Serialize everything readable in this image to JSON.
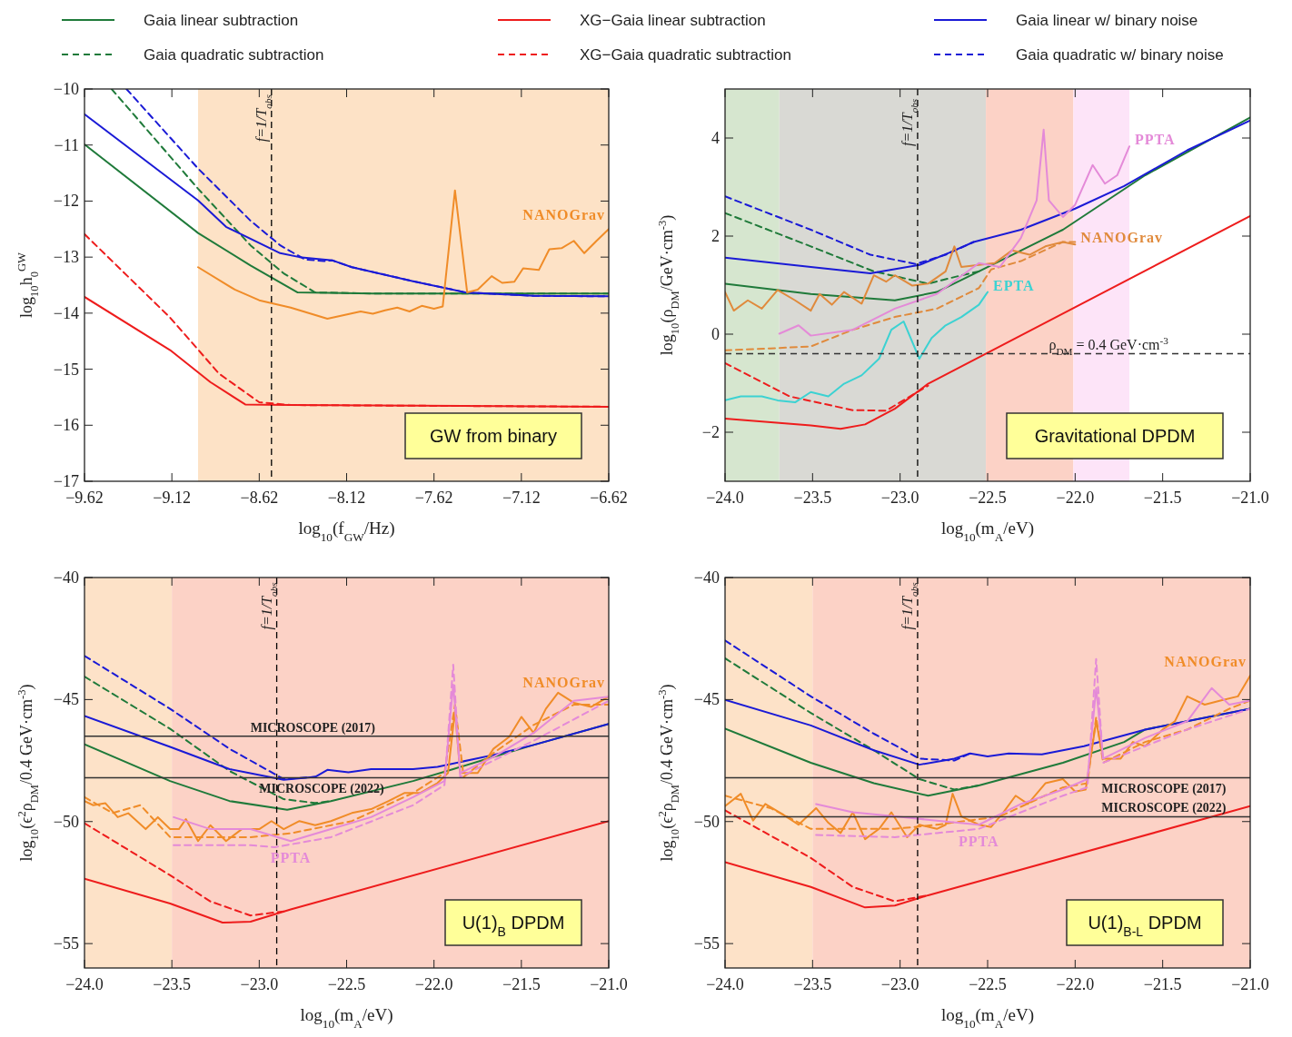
{
  "chart_data": [
    {
      "type": "line",
      "xlabel": "log$_{10}$(f$_{GW}$/Hz)",
      "ylabel": "log$_{10}$h$_{0}$$^{GW}$",
      "xlim": [
        -9.62,
        -6.62
      ],
      "ylim": [
        -17,
        -10
      ],
      "xticks": [
        -9.62,
        -9.12,
        -8.62,
        -8.12,
        -7.62,
        -7.12,
        -6.62
      ],
      "yticks": [
        -17,
        -16,
        -15,
        -14,
        -13,
        -12,
        -11,
        -10
      ],
      "legend": "top",
      "grid": false,
      "bands": [
        {
          "axis": "x",
          "from": -8.97,
          "to": -6.62,
          "color": "#fde2c6"
        }
      ],
      "ref_lines": [
        {
          "axis": "x",
          "value": -8.55,
          "line_style": "dashed",
          "color": "#000000"
        }
      ],
      "annotations": [
        "GW from binary",
        {
          "text": "f=1/T$_{obs}$",
          "x": -8.55,
          "y": -10.1
        }
      ],
      "series": [
        {
          "name": "Gaia linear subtraction",
          "color": "#1f7a3a",
          "line_style": "solid",
          "x": [
            -9.62,
            -8.97,
            -8.67,
            -8.4,
            -7.97,
            -6.62
          ],
          "values": [
            -10.99,
            -12.57,
            -13.15,
            -13.63,
            -13.65,
            -13.65
          ]
        },
        {
          "name": "Gaia quadratic subtraction",
          "color": "#1f7a3a",
          "line_style": "dashed",
          "x": [
            -9.465,
            -8.97,
            -8.67,
            -8.48,
            -8.3,
            -7.97,
            -6.62
          ],
          "values": [
            -10.0,
            -11.78,
            -12.79,
            -13.29,
            -13.63,
            -13.65,
            -13.65
          ]
        },
        {
          "name": "XG−Gaia linear subtraction",
          "color": "#ee1c1c",
          "line_style": "solid",
          "x": [
            -9.62,
            -9.13,
            -8.9,
            -8.7,
            -8.44,
            -6.62
          ],
          "values": [
            -13.71,
            -14.66,
            -15.23,
            -15.63,
            -15.64,
            -15.67
          ]
        },
        {
          "name": "XG−Gaia quadratic subtraction",
          "color": "#ee1c1c",
          "line_style": "dashed",
          "x": [
            -9.62,
            -9.13,
            -8.85,
            -8.62,
            -8.44,
            -6.62
          ],
          "values": [
            -12.59,
            -14.08,
            -15.08,
            -15.59,
            -15.64,
            -15.67
          ]
        },
        {
          "name": "Gaia linear w/ binary noise",
          "color": "#1a1ad6",
          "line_style": "solid",
          "x": [
            -9.62,
            -8.97,
            -8.81,
            -8.5,
            -8.39,
            -8.2,
            -8.09,
            -7.74,
            -7.44,
            -7.05,
            -6.62
          ],
          "values": [
            -10.45,
            -11.99,
            -12.46,
            -12.93,
            -13.0,
            -13.06,
            -13.18,
            -13.43,
            -13.63,
            -13.69,
            -13.7
          ]
        },
        {
          "name": "Gaia quadratic w/ binary noise",
          "color": "#1a1ad6",
          "line_style": "dashed",
          "x": [
            -9.38,
            -8.97,
            -8.67,
            -8.5,
            -8.36,
            -8.25,
            -8.2,
            -8.09,
            -7.74,
            -7.44,
            -7.05,
            -6.62
          ],
          "values": [
            -10.0,
            -11.42,
            -12.35,
            -12.79,
            -13.04,
            -13.07,
            -13.06,
            -13.18,
            -13.43,
            -13.63,
            -13.69,
            -13.7
          ]
        },
        {
          "name": "NANOGrav",
          "color": "#f08c28",
          "x": [
            -8.97,
            -8.76,
            -8.62,
            -8.44,
            -8.23,
            -8.04,
            -7.97,
            -7.9,
            -7.83,
            -7.76,
            -7.69,
            -7.62,
            -7.57,
            -7.5,
            -7.43,
            -7.37,
            -7.29,
            -7.23,
            -7.16,
            -7.11,
            -7.02,
            -6.96,
            -6.89,
            -6.82,
            -6.76,
            -6.69,
            -6.62
          ],
          "values": [
            -13.18,
            -13.58,
            -13.77,
            -13.9,
            -14.1,
            -13.97,
            -14.01,
            -13.95,
            -13.9,
            -13.97,
            -13.87,
            -13.92,
            -13.88,
            -11.81,
            -13.63,
            -13.58,
            -13.34,
            -13.46,
            -13.44,
            -13.2,
            -13.23,
            -12.86,
            -12.84,
            -12.71,
            -12.93,
            -12.71,
            -12.5
          ]
        }
      ]
    },
    {
      "type": "line",
      "xlabel": "log$_{10}$(m$_{A}$/eV)",
      "ylabel": "log$_{10}$(ρ$_{DM}$/GeV·cm$^{-3}$)",
      "xlim": [
        -24,
        -21
      ],
      "ylim": [
        -3,
        5
      ],
      "xticks": [
        {
          "value": -24,
          "label": "−24.0"
        },
        {
          "value": -23.5,
          "label": "−23.5"
        },
        {
          "value": -23,
          "label": "−23.0"
        },
        {
          "value": -22.5,
          "label": "−22.5"
        },
        {
          "value": -22,
          "label": "−22.0"
        },
        {
          "value": -21.5,
          "label": "−21.5"
        },
        {
          "value": -21,
          "label": "−21.0"
        }
      ],
      "yticks": [
        -2,
        0,
        2,
        4
      ],
      "grid": false,
      "bands": [
        {
          "axis": "x",
          "from": -24,
          "to": -23.69,
          "color": "#d6e6cf"
        },
        {
          "axis": "x",
          "from": -23.69,
          "to": -22.51,
          "color": "#d9d9d4"
        },
        {
          "axis": "x",
          "from": -22.51,
          "to": -22.01,
          "color": "#fcd2c6"
        },
        {
          "axis": "x",
          "from": -22.01,
          "to": -21.69,
          "color": "#fde4f8"
        }
      ],
      "ref_lines": [
        {
          "axis": "x",
          "value": -22.9,
          "line_style": "dashed",
          "color": "#000000"
        },
        {
          "axis": "y",
          "value": -0.4,
          "line_style": "dashed",
          "color": "#333333"
        }
      ],
      "annotations": [
        "Gravitational DPDM",
        {
          "text": "f=1/T$_{obs}$",
          "x": -22.9,
          "y": 4.8
        },
        {
          "text": "ρ$_{DM}$ = 0.4 GeV·cm$^{-3}$",
          "x": -22.15,
          "y": -0.4
        }
      ],
      "series": [
        {
          "color": "#1f7a3a",
          "line_style": "solid",
          "x": [
            -24,
            -23.51,
            -23.03,
            -22.79,
            -22.55,
            -22.07,
            -21.6,
            -21
          ],
          "values": [
            1.03,
            0.82,
            0.69,
            0.86,
            1.28,
            2.13,
            3.24,
            4.42
          ]
        },
        {
          "color": "#1f7a3a",
          "line_style": "dashed",
          "x": [
            -24,
            -23.51,
            -23.15,
            -22.84,
            -22.65,
            -22.55
          ],
          "values": [
            2.47,
            1.79,
            1.28,
            1.03,
            1.2,
            1.28
          ]
        },
        {
          "color": "#ee1c1c",
          "line_style": "solid",
          "x": [
            -24,
            -23.51,
            -23.34,
            -23.2,
            -23.03,
            -22.84,
            -21
          ],
          "values": [
            -1.72,
            -1.86,
            -1.93,
            -1.84,
            -1.52,
            -1.01,
            2.41
          ]
        },
        {
          "color": "#ee1c1c",
          "line_style": "dashed",
          "x": [
            -24,
            -23.63,
            -23.27,
            -23.08,
            -22.84
          ],
          "values": [
            -0.59,
            -1.27,
            -1.55,
            -1.56,
            -1.05
          ]
        },
        {
          "color": "#1a1ad6",
          "line_style": "solid",
          "x": [
            -24,
            -23.51,
            -23.17,
            -22.89,
            -22.72,
            -22.58,
            -22.31,
            -22.0,
            -21.72,
            -21.36,
            -21
          ],
          "values": [
            1.56,
            1.37,
            1.24,
            1.41,
            1.66,
            1.88,
            2.13,
            2.56,
            3.02,
            3.75,
            4.36
          ]
        },
        {
          "color": "#1a1ad6",
          "line_style": "dashed",
          "x": [
            -24,
            -23.51,
            -23.17,
            -22.91,
            -22.74,
            -22.58
          ],
          "values": [
            2.81,
            2.13,
            1.62,
            1.43,
            1.62,
            1.88
          ]
        },
        {
          "name": "NANOGrav",
          "color": "#e08a3c",
          "x": [
            -24,
            -23.95,
            -23.87,
            -23.79,
            -23.7,
            -23.6,
            -23.51,
            -23.46,
            -23.39,
            -23.32,
            -23.22,
            -23.15,
            -23.08,
            -23.03,
            -22.93,
            -22.84,
            -22.74,
            -22.69,
            -22.65,
            -22.55,
            -22.46,
            -22.36,
            -22.26,
            -22.17,
            -22.07,
            -22.0
          ],
          "values": [
            0.86,
            0.48,
            0.69,
            0.52,
            0.9,
            0.69,
            0.48,
            0.82,
            0.6,
            0.86,
            0.62,
            1.2,
            1.07,
            1.2,
            0.99,
            1.03,
            1.28,
            1.79,
            1.37,
            1.41,
            1.45,
            1.71,
            1.62,
            1.79,
            1.88,
            1.83
          ]
        },
        {
          "color": "#e08a3c",
          "line_style": "dashed",
          "x": [
            -24,
            -23.74,
            -23.51,
            -23.27,
            -23.03,
            -22.79,
            -22.55,
            -22.48,
            -22.31,
            -22.07,
            -22.0
          ],
          "values": [
            -0.33,
            -0.29,
            -0.25,
            0.09,
            0.35,
            0.52,
            0.94,
            1.32,
            1.49,
            1.88,
            1.88
          ]
        },
        {
          "name": "PPTA",
          "color": "#e48ad8",
          "x": [
            -23.69,
            -23.58,
            -23.51,
            -23.27,
            -23.03,
            -22.79,
            -22.55,
            -22.43,
            -22.31,
            -22.22,
            -22.18,
            -22.15,
            -22.07,
            -22.0,
            -21.9,
            -21.83,
            -21.76,
            -21.69
          ],
          "values": [
            0.01,
            0.18,
            -0.03,
            0.09,
            0.52,
            0.82,
            1.45,
            1.37,
            1.96,
            2.73,
            4.17,
            2.73,
            2.39,
            2.64,
            3.45,
            3.07,
            3.24,
            3.83
          ]
        },
        {
          "name": "EPTA",
          "color": "#3cd2d2",
          "x": [
            -24,
            -23.91,
            -23.79,
            -23.7,
            -23.6,
            -23.51,
            -23.41,
            -23.32,
            -23.22,
            -23.12,
            -23.05,
            -22.98,
            -22.89,
            -22.82,
            -22.74,
            -22.65,
            -22.55,
            -22.5
          ],
          "values": [
            -1.35,
            -1.27,
            -1.27,
            -1.35,
            -1.39,
            -1.18,
            -1.27,
            -1.01,
            -0.84,
            -0.5,
            0.09,
            0.26,
            -0.5,
            -0.08,
            0.18,
            0.35,
            0.6,
            0.86
          ]
        }
      ]
    },
    {
      "type": "line",
      "xlabel": "log$_{10}$(m$_{A}$/eV)",
      "ylabel": "log$_{10}$(ϵ$^{2}$ρ$_{DM}$/0.4 GeV·cm$^{-3}$)",
      "xlim": [
        -24,
        -21
      ],
      "ylim": [
        -56,
        -40
      ],
      "xticks": [
        {
          "value": -24,
          "label": "−24.0"
        },
        {
          "value": -23.5,
          "label": "−23.5"
        },
        {
          "value": -23,
          "label": "−23.0"
        },
        {
          "value": -22.5,
          "label": "−22.5"
        },
        {
          "value": -22,
          "label": "−22.0"
        },
        {
          "value": -21.5,
          "label": "−21.5"
        },
        {
          "value": -21,
          "label": "−21.0"
        }
      ],
      "yticks": [
        -55,
        -50,
        -45,
        -40
      ],
      "grid": false,
      "bands": [
        {
          "axis": "x",
          "from": -24,
          "to": -23.5,
          "color": "#fde2c8"
        },
        {
          "axis": "x",
          "from": -23.5,
          "to": -21,
          "color": "#fcd2c6"
        }
      ],
      "ref_lines": [
        {
          "axis": "x",
          "value": -22.9,
          "line_style": "dashed",
          "color": "#000000"
        },
        {
          "axis": "y",
          "value": -46.5,
          "line_style": "solid",
          "color": "#333333"
        },
        {
          "axis": "y",
          "value": -48.2,
          "line_style": "solid",
          "color": "#333333"
        }
      ],
      "annotations": [
        "U(1)$_{B}$ DPDM",
        {
          "text": "f=1/T$_{obs}$",
          "x": -22.9,
          "y": -40.2
        },
        {
          "text": "MICROSCOPE (2017)",
          "x": -23.05,
          "y": -46.5
        },
        {
          "text": "MICROSCOPE (2022)",
          "x": -23.0,
          "y": -48.2
        }
      ],
      "series": [
        {
          "color": "#1f7a3a",
          "line_style": "solid",
          "x": [
            -24,
            -23.51,
            -23.17,
            -22.84,
            -22.59,
            -22.12,
            -21.89,
            -21.66,
            -21.43,
            -21
          ],
          "values": [
            -46.83,
            -48.34,
            -49.16,
            -49.52,
            -49.16,
            -48.34,
            -47.85,
            -47.35,
            -46.86,
            -46.0
          ]
        },
        {
          "color": "#1f7a3a",
          "line_style": "dashed",
          "x": [
            -24,
            -23.51,
            -23.17,
            -22.86,
            -22.68,
            -22.59
          ],
          "values": [
            -44.06,
            -46.2,
            -47.93,
            -49.08,
            -49.24,
            -49.16
          ]
        },
        {
          "color": "#ee1c1c",
          "line_style": "solid",
          "x": [
            -24,
            -23.51,
            -23.21,
            -23.05,
            -22.82,
            -21
          ],
          "values": [
            -52.34,
            -53.36,
            -54.14,
            -54.1,
            -53.6,
            -49.98
          ]
        },
        {
          "color": "#ee1c1c",
          "line_style": "dashed",
          "x": [
            -24,
            -23.51,
            -23.28,
            -23.05,
            -22.86
          ],
          "values": [
            -50.07,
            -52.2,
            -53.27,
            -53.85,
            -53.68
          ]
        },
        {
          "color": "#1a1ad6",
          "line_style": "solid",
          "x": [
            -24,
            -23.51,
            -23.17,
            -22.86,
            -22.68,
            -22.61,
            -22.49,
            -22.36,
            -22.12,
            -21.98,
            -21.66,
            -21.43,
            -21
          ],
          "values": [
            -45.67,
            -46.94,
            -47.85,
            -48.29,
            -48.17,
            -47.88,
            -47.98,
            -47.85,
            -47.85,
            -47.76,
            -47.27,
            -46.86,
            -46.0
          ]
        },
        {
          "color": "#1a1ad6",
          "line_style": "dashed",
          "x": [
            -24,
            -23.51,
            -23.17,
            -22.86,
            -22.68
          ],
          "values": [
            -43.21,
            -45.38,
            -47.02,
            -48.26,
            -48.17
          ]
        },
        {
          "name": "NANOGrav",
          "color": "#f08c28",
          "x": [
            -24,
            -23.95,
            -23.88,
            -23.81,
            -23.75,
            -23.65,
            -23.58,
            -23.51,
            -23.46,
            -23.42,
            -23.35,
            -23.28,
            -23.19,
            -23.1,
            -23.0,
            -22.93,
            -22.86,
            -22.77,
            -22.68,
            -22.59,
            -22.47,
            -22.36,
            -22.26,
            -22.17,
            -22.08,
            -21.98,
            -21.92,
            -21.88,
            -21.85,
            -21.75,
            -21.66,
            -21.57,
            -21.5,
            -21.43,
            -21.36,
            -21.29,
            -21.2,
            -21.1,
            -21
          ],
          "values": [
            -49.16,
            -49.33,
            -49.25,
            -49.82,
            -49.66,
            -50.31,
            -49.82,
            -50.31,
            -50.31,
            -49.9,
            -50.8,
            -50.15,
            -50.8,
            -50.31,
            -50.31,
            -49.98,
            -50.31,
            -49.98,
            -50.15,
            -49.98,
            -49.65,
            -49.49,
            -49.16,
            -48.83,
            -48.83,
            -48.42,
            -48.01,
            -45.46,
            -48.01,
            -48.01,
            -47.02,
            -46.53,
            -45.71,
            -46.37,
            -45.38,
            -44.72,
            -45.13,
            -45.3,
            -44.88
          ]
        },
        {
          "color": "#f08c28",
          "line_style": "dashed",
          "x": [
            -24,
            -23.84,
            -23.68,
            -23.51,
            -23.28,
            -23.05,
            -22.82,
            -22.47,
            -22.12,
            -21.94,
            -21.88,
            -21.83,
            -21.66,
            -21.43,
            -21.2,
            -21
          ],
          "values": [
            -49.0,
            -49.65,
            -49.33,
            -50.64,
            -50.64,
            -50.64,
            -50.48,
            -49.98,
            -48.83,
            -48.01,
            -45.21,
            -48.17,
            -47.19,
            -46.04,
            -45.21,
            -45.21
          ]
        },
        {
          "name": "PPTA",
          "color": "#e48ad8",
          "x": [
            -23.49,
            -23.28,
            -23.05,
            -22.82,
            -22.59,
            -22.36,
            -22.12,
            -21.94,
            -21.89,
            -21.85,
            -21.66,
            -21.43,
            -21.2,
            -21
          ],
          "values": [
            -49.82,
            -50.31,
            -50.31,
            -50.8,
            -50.31,
            -49.82,
            -49.0,
            -48.34,
            -44.39,
            -48.01,
            -47.35,
            -46.37,
            -45.05,
            -44.88
          ]
        },
        {
          "color": "#e48ad8",
          "line_style": "dashed",
          "x": [
            -23.49,
            -23.05,
            -22.91,
            -22.59,
            -22.12,
            -21.94,
            -21.89,
            -21.85,
            -21.43,
            -21
          ],
          "values": [
            -50.97,
            -50.97,
            -51.05,
            -50.64,
            -49.33,
            -48.5,
            -43.57,
            -48.17,
            -46.69,
            -45.05
          ]
        }
      ]
    },
    {
      "type": "line",
      "xlabel": "log$_{10}$(m$_{A}$/eV)",
      "ylabel": "log$_{10}$(ϵ$^{2}$ρ$_{DM}$/0.4 GeV·cm$^{-3}$)",
      "xlim": [
        -24,
        -21
      ],
      "ylim": [
        -56,
        -40
      ],
      "xticks": [
        {
          "value": -24,
          "label": "−24.0"
        },
        {
          "value": -23.5,
          "label": "−23.5"
        },
        {
          "value": -23,
          "label": "−23.0"
        },
        {
          "value": -22.5,
          "label": "−22.5"
        },
        {
          "value": -22,
          "label": "−22.0"
        },
        {
          "value": -21.5,
          "label": "−21.5"
        },
        {
          "value": -21,
          "label": "−21.0"
        }
      ],
      "yticks": [
        -55,
        -50,
        -45,
        -40
      ],
      "grid": false,
      "bands": [
        {
          "axis": "x",
          "from": -24,
          "to": -23.5,
          "color": "#fde2c8"
        },
        {
          "axis": "x",
          "from": -23.5,
          "to": -21,
          "color": "#fcd2c6"
        }
      ],
      "ref_lines": [
        {
          "axis": "x",
          "value": -22.9,
          "line_style": "dashed",
          "color": "#000000"
        },
        {
          "axis": "y",
          "value": -48.2,
          "line_style": "solid",
          "color": "#333333"
        },
        {
          "axis": "y",
          "value": -49.8,
          "line_style": "solid",
          "color": "#333333"
        }
      ],
      "annotations": [
        "U(1)$_{B-L}$ DPDM",
        {
          "text": "f=1/T$_{obs}$",
          "x": -22.9,
          "y": -40.2
        },
        {
          "text": "MICROSCOPE (2017)",
          "x": -21.85,
          "y": -48.2
        },
        {
          "text": "MICROSCOPE (2022)",
          "x": -21.85,
          "y": -49.8
        }
      ],
      "series": [
        {
          "color": "#1f7a3a",
          "line_style": "solid",
          "x": [
            -24,
            -23.51,
            -23.15,
            -22.84,
            -22.55,
            -22.07,
            -21.72,
            -21.6,
            -21
          ],
          "values": [
            -46.19,
            -47.59,
            -48.43,
            -48.94,
            -48.52,
            -47.59,
            -46.74,
            -46.23,
            -45.38
          ]
        },
        {
          "color": "#1f7a3a",
          "line_style": "dashed",
          "x": [
            -24,
            -23.51,
            -23.15,
            -22.89,
            -22.69,
            -22.55
          ],
          "values": [
            -43.31,
            -45.55,
            -47.08,
            -48.26,
            -48.69,
            -48.52
          ]
        },
        {
          "color": "#ee1c1c",
          "line_style": "solid",
          "x": [
            -24,
            -23.51,
            -23.2,
            -23.03,
            -22.84,
            -21
          ],
          "values": [
            -51.66,
            -52.68,
            -53.52,
            -53.44,
            -53.02,
            -49.37
          ]
        },
        {
          "color": "#ee1c1c",
          "line_style": "dashed",
          "x": [
            -24,
            -23.51,
            -23.27,
            -23.03,
            -22.84
          ],
          "values": [
            -49.54,
            -51.49,
            -52.68,
            -53.27,
            -53.02
          ]
        },
        {
          "color": "#1a1ad6",
          "line_style": "solid",
          "x": [
            -24,
            -23.51,
            -23.15,
            -22.89,
            -22.69,
            -22.6,
            -22.5,
            -22.38,
            -22.19,
            -21.95,
            -21.6,
            -21
          ],
          "values": [
            -45.01,
            -46.06,
            -47.08,
            -47.67,
            -47.42,
            -47.21,
            -47.33,
            -47.21,
            -47.25,
            -46.91,
            -46.23,
            -45.38
          ]
        },
        {
          "color": "#1a1ad6",
          "line_style": "dashed",
          "x": [
            -24,
            -23.51,
            -23.15,
            -22.89,
            -22.69,
            -22.6
          ],
          "values": [
            -42.58,
            -44.87,
            -46.4,
            -47.42,
            -47.5,
            -47.21
          ]
        },
        {
          "name": "NANOGrav",
          "color": "#f08c28",
          "x": [
            -24,
            -23.91,
            -23.84,
            -23.77,
            -23.67,
            -23.58,
            -23.48,
            -23.41,
            -23.34,
            -23.27,
            -23.2,
            -23.12,
            -23.05,
            -22.96,
            -22.89,
            -22.79,
            -22.74,
            -22.7,
            -22.65,
            -22.55,
            -22.48,
            -22.41,
            -22.34,
            -22.27,
            -22.17,
            -22.07,
            -22.0,
            -21.94,
            -21.88,
            -21.84,
            -21.74,
            -21.67,
            -21.6,
            -21.5,
            -21.43,
            -21.36,
            -21.26,
            -21.17,
            -21.07,
            -21
          ],
          "values": [
            -49.37,
            -48.86,
            -49.96,
            -49.28,
            -49.71,
            -50.13,
            -49.45,
            -50.05,
            -50.47,
            -49.62,
            -50.72,
            -50.3,
            -49.62,
            -50.64,
            -50.13,
            -50.3,
            -50.13,
            -48.86,
            -49.79,
            -50.13,
            -50.22,
            -49.62,
            -48.94,
            -49.28,
            -48.43,
            -48.26,
            -48.77,
            -48.69,
            -45.89,
            -47.42,
            -47.42,
            -46.74,
            -46.91,
            -46.23,
            -45.89,
            -44.87,
            -45.21,
            -45.04,
            -44.87,
            -44.02
          ]
        },
        {
          "color": "#f08c28",
          "line_style": "dashed",
          "x": [
            -24,
            -23.74,
            -23.51,
            -23.03,
            -22.79,
            -22.43,
            -22.07,
            -21.93,
            -21.88,
            -21.84,
            -21.6,
            -21.36,
            -21.12,
            -21
          ],
          "values": [
            -48.94,
            -49.45,
            -50.3,
            -50.3,
            -50.13,
            -49.79,
            -48.6,
            -48.43,
            -45.72,
            -47.59,
            -46.74,
            -46.23,
            -45.38,
            -45.04
          ]
        },
        {
          "name": "PPTA",
          "color": "#e48ad8",
          "x": [
            -23.48,
            -23.27,
            -23.03,
            -22.79,
            -22.55,
            -22.31,
            -22.07,
            -21.93,
            -21.88,
            -21.84,
            -21.6,
            -21.36,
            -21.22,
            -21.12,
            -21
          ],
          "values": [
            -49.28,
            -49.62,
            -49.79,
            -49.96,
            -50.13,
            -49.28,
            -48.69,
            -48.26,
            -44.53,
            -47.42,
            -46.57,
            -45.89,
            -44.53,
            -45.21,
            -45.04
          ]
        },
        {
          "color": "#e48ad8",
          "line_style": "dashed",
          "x": [
            -23.48,
            -23.03,
            -22.79,
            -22.55,
            -22.07,
            -21.93,
            -21.88,
            -21.84,
            -21.36,
            -21
          ],
          "values": [
            -50.55,
            -50.64,
            -50.47,
            -50.3,
            -48.94,
            -48.6,
            -43.34,
            -47.59,
            -46.23,
            -45.38
          ]
        }
      ]
    }
  ]
}
